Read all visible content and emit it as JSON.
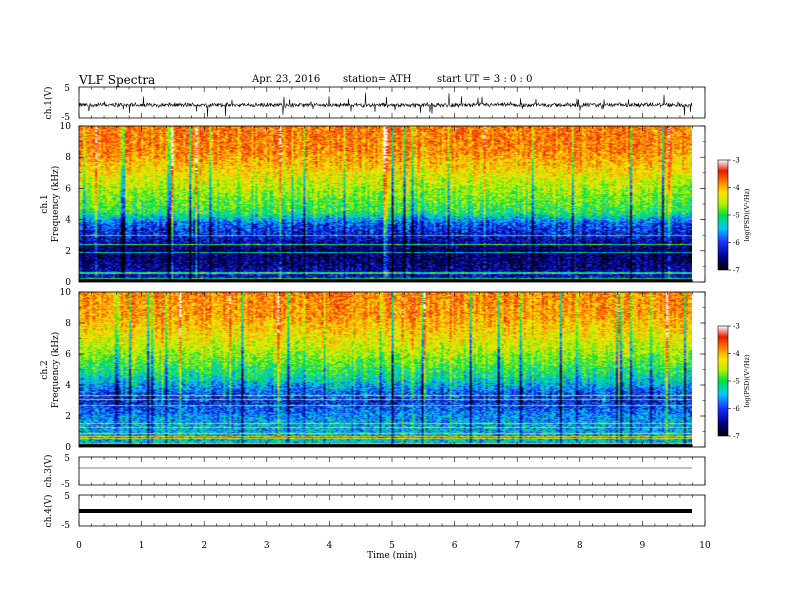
{
  "header": {
    "title": "VLF  Spectra",
    "date": "Apr. 23, 2016",
    "station": "station= ATH",
    "start": "start  UT  =   3  : 0  : 0"
  },
  "chart_data": [
    {
      "type": "line",
      "name": "ch1-waveform",
      "ylabel": "ch.1(V)",
      "ylim": [
        -5,
        5
      ],
      "yticks": [
        "5",
        "-5"
      ],
      "x_range_min": [
        0,
        9.8
      ],
      "baseline_v": -0.8,
      "noise_amplitude_v": 1.2,
      "spike_amplitude_v": 3.5
    },
    {
      "type": "heatmap",
      "name": "ch1-spectrogram",
      "ylabel_lines": [
        "ch.1",
        "Frequency  (kHz)"
      ],
      "xlim": [
        0,
        10
      ],
      "ylim": [
        0,
        10
      ],
      "yticks": [
        "0",
        "2",
        "4",
        "6",
        "8",
        "10"
      ],
      "data_extent_min": 9.8,
      "colorbar": {
        "range": [
          -7,
          -3
        ],
        "ticks": [
          "-3",
          "-4",
          "-5",
          "-6",
          "-7"
        ],
        "label": "log(PSD)(V²/Hz)"
      },
      "profile_logpsd": [
        {
          "f": 0.0,
          "v": -6.2
        },
        {
          "f": 0.5,
          "v": -6.4
        },
        {
          "f": 1.2,
          "v": -6.6
        },
        {
          "f": 2.0,
          "v": -6.7
        },
        {
          "f": 3.0,
          "v": -6.3
        },
        {
          "f": 3.8,
          "v": -6.0
        },
        {
          "f": 4.5,
          "v": -5.2
        },
        {
          "f": 5.5,
          "v": -4.9
        },
        {
          "f": 6.5,
          "v": -4.6
        },
        {
          "f": 7.5,
          "v": -4.2
        },
        {
          "f": 8.5,
          "v": -3.9
        },
        {
          "f": 10.0,
          "v": -3.8
        }
      ]
    },
    {
      "type": "heatmap",
      "name": "ch2-spectrogram",
      "ylabel_lines": [
        "ch.2",
        "Frequency  (kHz)"
      ],
      "xlim": [
        0,
        10
      ],
      "ylim": [
        0,
        10
      ],
      "yticks": [
        "0",
        "2",
        "4",
        "6",
        "8",
        "10"
      ],
      "data_extent_min": 9.8,
      "colorbar": {
        "range": [
          -7,
          -3
        ],
        "ticks": [
          "-3",
          "-4",
          "-5",
          "-6",
          "-7"
        ],
        "label": "log(PSD)(V²/Hz)"
      },
      "profile_logpsd": [
        {
          "f": 0.0,
          "v": -5.6
        },
        {
          "f": 1.0,
          "v": -5.7
        },
        {
          "f": 2.0,
          "v": -5.8
        },
        {
          "f": 3.0,
          "v": -6.2
        },
        {
          "f": 3.5,
          "v": -6.0
        },
        {
          "f": 4.5,
          "v": -5.4
        },
        {
          "f": 5.5,
          "v": -5.0
        },
        {
          "f": 6.5,
          "v": -4.6
        },
        {
          "f": 7.5,
          "v": -4.3
        },
        {
          "f": 8.5,
          "v": -4.0
        },
        {
          "f": 10.0,
          "v": -3.9
        }
      ]
    },
    {
      "type": "line",
      "name": "ch3-waveform",
      "ylabel": "ch.3(V)",
      "ylim": [
        -5,
        5
      ],
      "yticks": [
        "5",
        "-5"
      ],
      "x_range_min": [
        0,
        9.8
      ],
      "baseline_v": 0
    },
    {
      "type": "line",
      "name": "ch4-waveform",
      "ylabel": "ch.4(V)",
      "ylim": [
        -5,
        5
      ],
      "yticks": [
        "5",
        "-5"
      ],
      "x_range_min": [
        0,
        9.8
      ],
      "baseline_v": -0.3
    }
  ],
  "xaxis": {
    "label": "Time  (min)",
    "ticks": [
      "0",
      "1",
      "2",
      "3",
      "4",
      "5",
      "6",
      "7",
      "8",
      "9",
      "10"
    ],
    "range": [
      0,
      10
    ]
  },
  "colormap": [
    "#000000",
    "#00008c",
    "#1a2fff",
    "#00c8ff",
    "#00e040",
    "#b4f000",
    "#ffe600",
    "#ff8000",
    "#e61a00",
    "#ffffff"
  ]
}
